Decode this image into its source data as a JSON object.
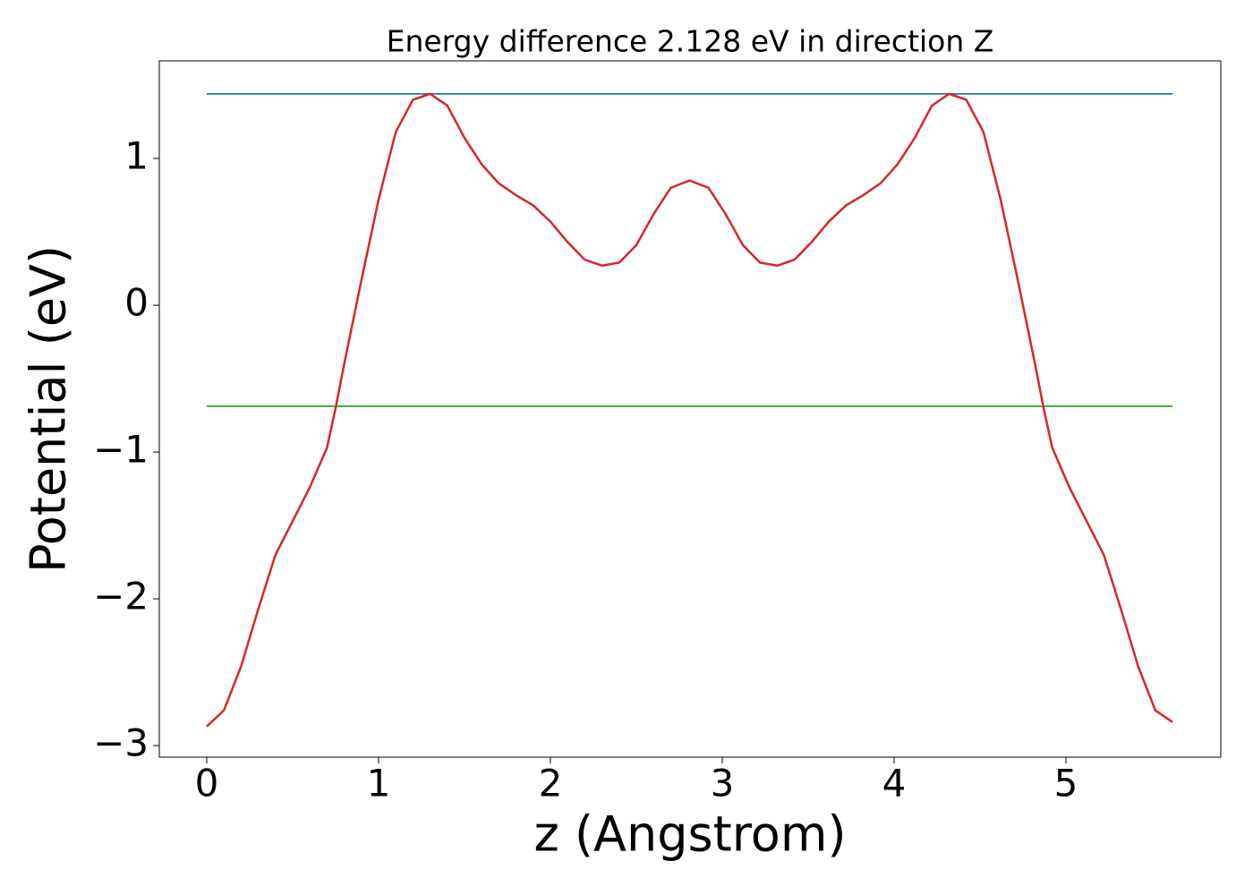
{
  "chart_data": {
    "type": "line",
    "title": "Energy difference 2.128 eV in direction Z",
    "x_label": "z (Angstrom)",
    "y_label": "Potential (eV)",
    "xlim": [
      -0.276,
      5.901
    ],
    "ylim": [
      -3.079,
      1.665
    ],
    "xticks": [
      0,
      1,
      2,
      3,
      4,
      5
    ],
    "yticks": [
      {
        "value": -3,
        "label": "−3"
      },
      {
        "value": -2,
        "label": "−2"
      },
      {
        "value": -1,
        "label": "−1"
      },
      0,
      1
    ],
    "grid": false,
    "series": [
      {
        "color": "#d62728",
        "x": [
          0,
          0.1,
          0.2,
          0.3,
          0.4,
          0.5,
          0.6,
          0.7,
          0.75,
          0.8,
          0.9,
          1.0,
          1.1,
          1.2,
          1.3,
          1.4,
          1.5,
          1.6,
          1.7,
          1.8,
          1.9,
          2.0,
          2.1,
          2.2,
          2.3,
          2.4,
          2.5,
          2.6,
          2.7,
          2.81,
          2.92,
          3.02,
          3.12,
          3.22,
          3.32,
          3.42,
          3.52,
          3.62,
          3.72,
          3.82,
          3.92,
          4.02,
          4.12,
          4.22,
          4.32,
          4.42,
          4.52,
          4.62,
          4.72,
          4.82,
          4.87,
          4.92,
          5.02,
          5.12,
          5.22,
          5.32,
          5.42,
          5.52,
          5.62
        ],
        "values": [
          -2.87,
          -2.76,
          -2.46,
          -2.07,
          -1.7,
          -1.47,
          -1.24,
          -0.97,
          -0.7,
          -0.4,
          0.17,
          0.72,
          1.18,
          1.4,
          1.44,
          1.36,
          1.14,
          0.96,
          0.83,
          0.75,
          0.68,
          0.57,
          0.43,
          0.31,
          0.27,
          0.29,
          0.41,
          0.62,
          0.8,
          0.85,
          0.8,
          0.62,
          0.41,
          0.29,
          0.27,
          0.31,
          0.43,
          0.57,
          0.68,
          0.75,
          0.83,
          0.96,
          1.14,
          1.36,
          1.44,
          1.4,
          1.18,
          0.72,
          0.17,
          -0.4,
          -0.7,
          -0.97,
          -1.24,
          -1.47,
          -1.7,
          -2.07,
          -2.46,
          -2.76,
          -2.84
        ]
      },
      {
        "color": "#1f77b4",
        "x": [
          0,
          5.62
        ],
        "values": [
          1.44,
          1.44
        ]
      },
      {
        "color": "#2ca02c",
        "x": [
          0,
          5.62
        ],
        "values": [
          -0.688,
          -0.688
        ]
      }
    ]
  }
}
